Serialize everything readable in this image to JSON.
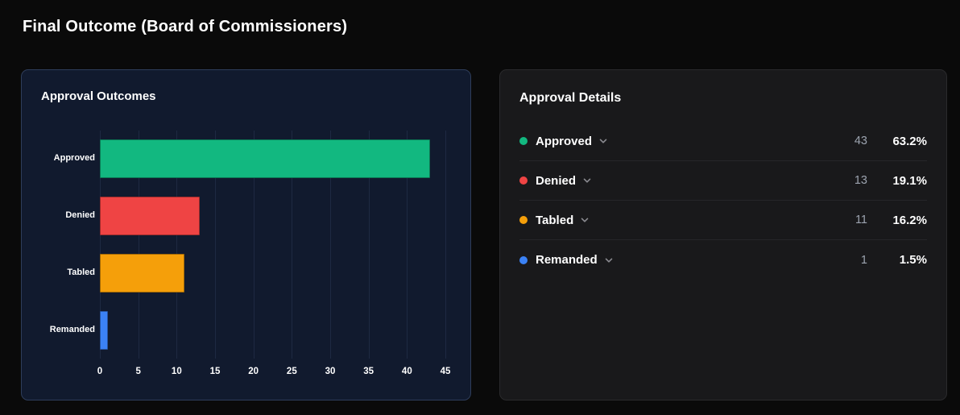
{
  "page": {
    "title": "Final Outcome (Board of Commissioners)"
  },
  "chart_panel": {
    "title": "Approval Outcomes"
  },
  "details_panel": {
    "title": "Approval Details",
    "rows": [
      {
        "label": "Approved",
        "count": "43",
        "percent": "63.2%",
        "color": "#12b880"
      },
      {
        "label": "Denied",
        "count": "13",
        "percent": "19.1%",
        "color": "#ef4444"
      },
      {
        "label": "Tabled",
        "count": "11",
        "percent": "16.2%",
        "color": "#f59f0a"
      },
      {
        "label": "Remanded",
        "count": "1",
        "percent": "1.5%",
        "color": "#3b82f6"
      }
    ]
  },
  "chart_data": {
    "type": "bar",
    "orientation": "horizontal",
    "title": "Approval Outcomes",
    "categories": [
      "Approved",
      "Denied",
      "Tabled",
      "Remanded"
    ],
    "values": [
      43,
      13,
      11,
      1
    ],
    "colors": [
      "#12b880",
      "#ef4444",
      "#f59f0a",
      "#3b82f6"
    ],
    "xlim": [
      0,
      45
    ],
    "xticks": [
      0,
      5,
      10,
      15,
      20,
      25,
      30,
      35,
      40,
      45
    ],
    "xlabel": "",
    "ylabel": "",
    "grid": true,
    "legend": false
  },
  "colors": {
    "page_background": "#0a0a0a",
    "chart_panel_background": "#111a2e",
    "chart_panel_border": "#2e3d5a",
    "gridline": "#1e2942",
    "details_panel_background": "#19191b",
    "details_panel_border": "#2a2a2c",
    "muted_text": "#9ca3af",
    "text": "#ffffff"
  }
}
